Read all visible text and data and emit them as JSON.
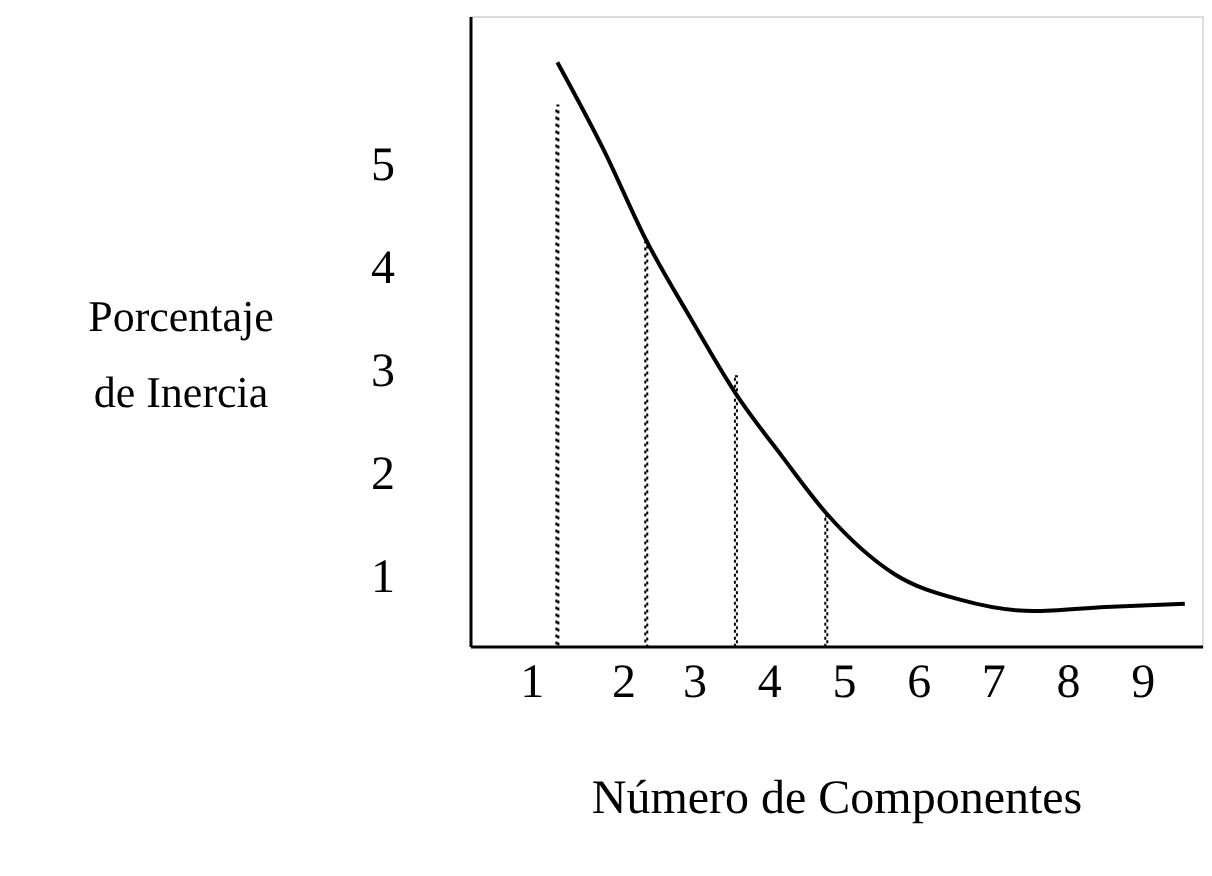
{
  "chart_data": {
    "type": "line",
    "xlabel": "Número de Componentes",
    "ylabel": "Porcentaje de Inercia",
    "xlim": [
      0,
      9.8
    ],
    "ylim": [
      0.33,
      6.45
    ],
    "xticks": [
      {
        "value": 0.82,
        "label": "1"
      },
      {
        "value": 2.05,
        "label": "2"
      },
      3,
      4,
      5,
      6,
      7,
      8,
      9
    ],
    "yticks": [
      1,
      2,
      3,
      4,
      5
    ],
    "grid": false,
    "series": [
      {
        "color": "#000000",
        "line_style": "solid",
        "marker": "none",
        "x": [
          1.17,
          1.79,
          2.36,
          2.94,
          3.56,
          4.18,
          4.77,
          5.68,
          6.56,
          7.54,
          8.51,
          9.57
        ],
        "values": [
          6.0,
          5.15,
          4.27,
          3.53,
          2.78,
          2.17,
          1.62,
          1.03,
          0.78,
          0.67,
          0.71,
          0.74
        ]
      },
      {
        "type": "bar",
        "color": "#000000",
        "line_style": "dotted",
        "marker": "none",
        "x": [
          1.17,
          2.36,
          3.56,
          4.77
        ],
        "values": [
          5.58,
          4.27,
          2.95,
          1.59
        ]
      }
    ]
  }
}
